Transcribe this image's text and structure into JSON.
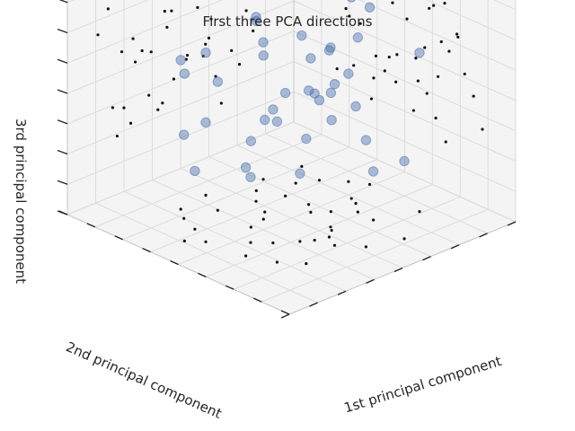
{
  "chart_data": {
    "type": "scatter",
    "projection": "3d",
    "title": "First three PCA directions",
    "xlabel": "1st principal component",
    "ylabel": "2nd principal component",
    "zlabel": "3rd principal component",
    "tick_labels_visible": false,
    "grid": true,
    "colors": {
      "pane": "#f4f4f4",
      "grid": "#dcdcdc",
      "points": "#4c72b0",
      "projections": "#111111",
      "text": "#262626"
    },
    "series": [
      {
        "role": "points",
        "marker": "circle",
        "x": [
          -0.12,
          0.52,
          -0.64,
          0.05,
          -0.26,
          0.37,
          -0.44,
          0.27,
          -0.06,
          0.66,
          0.09,
          0.22,
          -0.52,
          -0.16,
          0.45,
          -0.73,
          0.38,
          -0.4,
          0.15,
          -0.28,
          0.64,
          -0.02,
          0.31,
          -0.56,
          0.12,
          -0.34,
          0.2,
          0.48,
          -0.08,
          0.58,
          -0.2,
          0.01,
          -0.6,
          0.25,
          -0.42,
          0.36,
          0.71,
          -0.14,
          0.06,
          -0.5
        ],
        "y": [
          -0.33,
          0.28,
          0.12,
          -0.62,
          0.4,
          -0.22,
          -0.08,
          0.53,
          0.18,
          -0.48,
          -0.26,
          0.07,
          -0.4,
          0.61,
          -0.12,
          0.22,
          0.35,
          -0.54,
          -0.02,
          0.08,
          0.14,
          -0.36,
          -0.7,
          0.3,
          0.44,
          -0.18,
          0.26,
          -0.05,
          -0.47,
          0.5,
          -0.28,
          0.33,
          -0.2,
          -0.1,
          0.57,
          -0.37,
          0.02,
          0.11,
          -0.3,
          0.46
        ],
        "z": [
          0.21,
          -0.34,
          0.56,
          -0.12,
          0.06,
          0.44,
          -0.46,
          0.13,
          -0.24,
          0.31,
          0.48,
          -0.06,
          0.16,
          -0.4,
          -0.2,
          0.38,
          0.62,
          0.03,
          0.27,
          -0.29,
          -0.11,
          0.54,
          -0.36,
          -0.52,
          0.4,
          0.1,
          -0.15,
          0.66,
          0.33,
          0.08,
          -0.44,
          0.52,
          -0.27,
          -0.02,
          0.23,
          -0.6,
          0.46,
          0.35,
          -0.09,
          -0.31
        ]
      }
    ],
    "projections": [
      "onto 1st/2nd plane (floor)",
      "onto 1st/3rd plane (back wall)",
      "onto 2nd/3rd plane (side wall)"
    ]
  }
}
